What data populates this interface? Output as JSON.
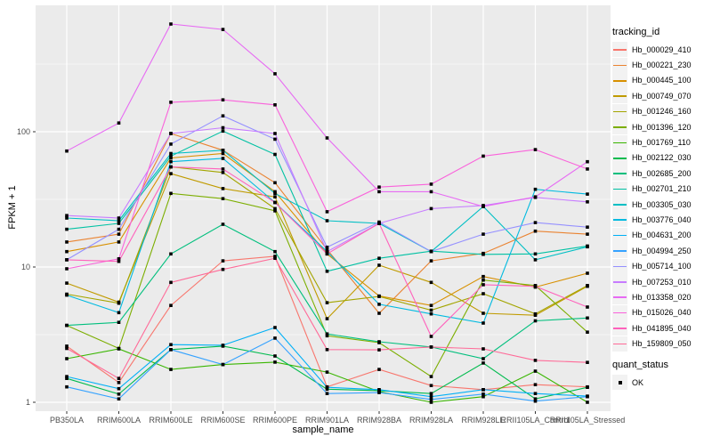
{
  "chart_data": {
    "type": "line",
    "title": "",
    "xlabel": "sample_name",
    "ylabel": "FPKM + 1",
    "yscale": "log10",
    "ylim": [
      0.82,
      870
    ],
    "grid": true,
    "legend_position": "right",
    "x_tick_labels": [
      "PB350LA",
      "RRIM600LA",
      "RRIM600LE",
      "RRIM600SE",
      "RRIM600PE",
      "RRIM901LA",
      "RRIM928BA",
      "RRIM928LA",
      "RRIM928LE",
      "RRII105LA_Control",
      "RRII105LA_Stressed"
    ],
    "y_major_ticks": [
      1,
      10,
      100
    ],
    "y_major_tick_labels": [
      "1",
      "10",
      "100"
    ],
    "y_minor_ticks": [
      3.162,
      31.62,
      316.2
    ],
    "panel_background": "#EBEBEB",
    "gridline_color": "#FFFFFF",
    "tick_label_color": "#4D4D4D",
    "point_color": "#000000",
    "categories": [
      "PB350LA",
      "RRIM600LA",
      "RRIM600LE",
      "RRIM600SE",
      "RRIM600PE",
      "RRIM901LA",
      "RRIM928BA",
      "RRIM928LA",
      "RRIM928LE",
      "RRII105LA_Control",
      "RRII105LA_Stressed"
    ],
    "series": [
      {
        "name": "Hb_000029_410",
        "color": "#F8766D",
        "values": [
          2.6,
          1.4,
          5.2,
          11.1,
          12.0,
          1.3,
          1.75,
          1.33,
          1.24,
          1.35,
          1.3
        ]
      },
      {
        "name": "Hb_000221_230",
        "color": "#EA8331",
        "values": [
          15.3,
          17.5,
          97,
          73,
          42,
          13.5,
          4.55,
          11.1,
          12.6,
          18.4,
          17.5
        ]
      },
      {
        "name": "Hb_000445_100",
        "color": "#D89000",
        "values": [
          13,
          15.3,
          64,
          69,
          36,
          12.5,
          6.1,
          5.2,
          8.5,
          7.1,
          9.0
        ]
      },
      {
        "name": "Hb_000749_070",
        "color": "#C09B00",
        "values": [
          7.6,
          5.5,
          49,
          38,
          33,
          4.15,
          10.3,
          7.7,
          4.55,
          4.4,
          7.2
        ]
      },
      {
        "name": "Hb_001246_160",
        "color": "#A3A500",
        "values": [
          6.3,
          5.4,
          55,
          50,
          27,
          5.45,
          6.06,
          4.8,
          6.35,
          4.5,
          7.3
        ]
      },
      {
        "name": "Hb_001396_120",
        "color": "#7CAE00",
        "values": [
          3.7,
          2.5,
          35,
          32,
          26,
          3.1,
          2.76,
          1.55,
          8.0,
          7.3,
          3.3
        ]
      },
      {
        "name": "Hb_001769_110",
        "color": "#39B600",
        "values": [
          2.1,
          2.48,
          1.75,
          1.9,
          1.98,
          1.67,
          1.2,
          1.0,
          1.1,
          1.7,
          1.0
        ]
      },
      {
        "name": "Hb_002122_030",
        "color": "#00BB4E",
        "values": [
          1.5,
          1.15,
          2.45,
          2.6,
          2.2,
          1.25,
          1.22,
          1.16,
          1.95,
          1.06,
          1.29
        ]
      },
      {
        "name": "Hb_002685_200",
        "color": "#00BF7D",
        "values": [
          3.7,
          3.9,
          12.5,
          20.7,
          13,
          3.2,
          2.8,
          2.56,
          2.1,
          4.0,
          4.2
        ]
      },
      {
        "name": "Hb_002701_210",
        "color": "#00C1A3",
        "values": [
          19,
          21,
          66,
          101,
          68,
          9.3,
          11.6,
          13.1,
          12.4,
          12.5,
          14.3
        ]
      },
      {
        "name": "Hb_003305_030",
        "color": "#00BFC4",
        "values": [
          23,
          22,
          69,
          73,
          35,
          22,
          21,
          13,
          28,
          11.3,
          14.1
        ]
      },
      {
        "name": "Hb_003776_040",
        "color": "#00BAE0",
        "values": [
          6.2,
          4.6,
          60,
          63.5,
          30,
          13,
          5.3,
          4.5,
          3.85,
          37.5,
          34.6
        ]
      },
      {
        "name": "Hb_004631_200",
        "color": "#00B0F6",
        "values": [
          1.55,
          1.26,
          2.67,
          2.64,
          3.57,
          1.29,
          1.24,
          1.1,
          1.24,
          1.16,
          1.11
        ]
      },
      {
        "name": "Hb_004994_250",
        "color": "#35A2FF",
        "values": [
          1.3,
          1.06,
          2.45,
          1.9,
          2.98,
          1.16,
          1.18,
          1.05,
          1.15,
          1.02,
          1.1
        ]
      },
      {
        "name": "Hb_005714_100",
        "color": "#9590FF",
        "values": [
          11.3,
          19,
          81,
          131,
          88,
          14,
          21.5,
          13,
          17.5,
          21.3,
          19.7
        ]
      },
      {
        "name": "Hb_007253_010",
        "color": "#C77CFF",
        "values": [
          24,
          23,
          97,
          107,
          97,
          13,
          21,
          27,
          28.5,
          32.7,
          30.3
        ]
      },
      {
        "name": "Hb_013358_020",
        "color": "#E76BF3",
        "values": [
          72,
          116,
          625,
          570,
          268,
          90,
          36,
          36,
          28,
          33,
          60
        ]
      },
      {
        "name": "Hb_015026_040",
        "color": "#FA62DB",
        "values": [
          9.7,
          11.5,
          165,
          172,
          158,
          25.6,
          39,
          41,
          66,
          73.7,
          53
        ]
      },
      {
        "name": "Hb_041895_040",
        "color": "#FF62BC",
        "values": [
          11.3,
          11,
          55,
          53,
          30,
          12.5,
          21,
          3.07,
          7.4,
          7.2,
          5.06
        ]
      },
      {
        "name": "Hb_159809_050",
        "color": "#FF6A98",
        "values": [
          2.5,
          1.5,
          7.7,
          9.6,
          11.6,
          2.45,
          2.44,
          2.56,
          2.48,
          2.04,
          1.97
        ]
      }
    ]
  },
  "axes": {
    "x_title": "sample_name",
    "y_title": "FPKM + 1"
  },
  "legend": {
    "tracking_title": "tracking_id",
    "quant_title": "quant_status",
    "quant_items": [
      {
        "label": "OK"
      }
    ]
  }
}
